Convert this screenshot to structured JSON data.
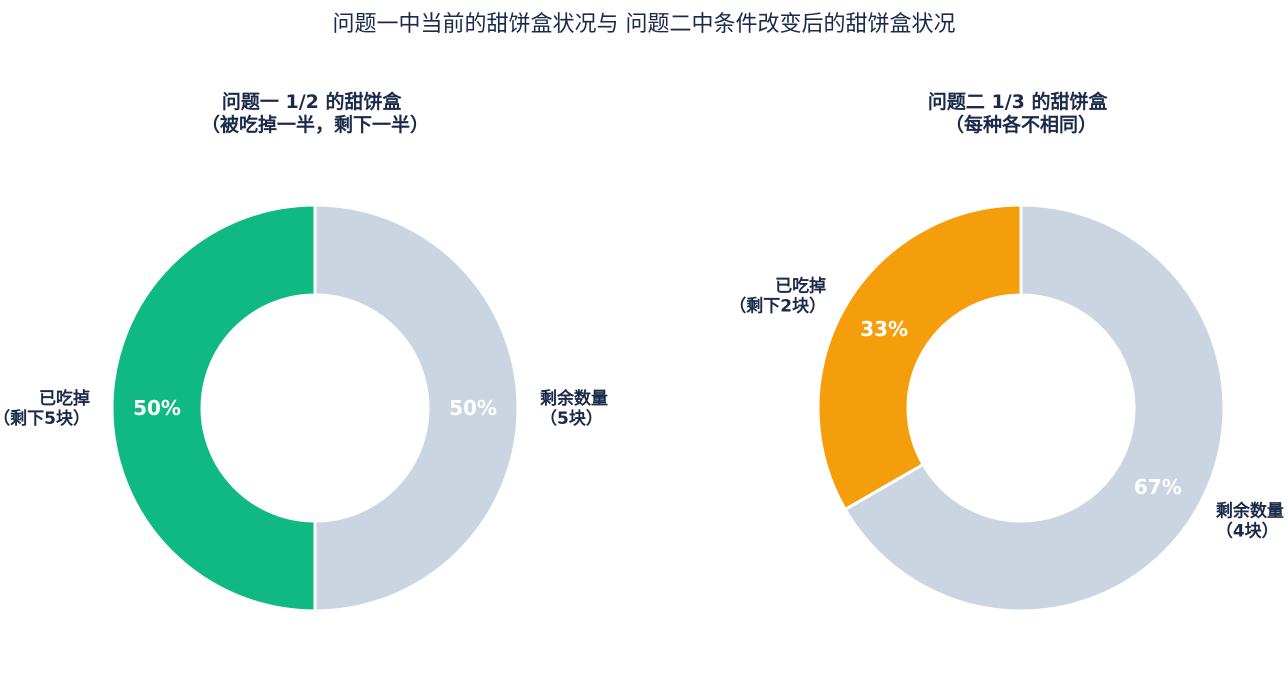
{
  "figure": {
    "title": "问题一中当前的甜饼盒状况与 问题二中条件改变后的甜饼盒状况"
  },
  "chart_data": [
    {
      "type": "pie",
      "title": "问题一 1/2 的甜饼盒\n（被吃掉一半，剩下一半）",
      "slices": [
        {
          "label": "已吃掉\n（剩下5块）",
          "value": 50,
          "color": "#10b981",
          "pct_label": "50%"
        },
        {
          "label": "剩余数量\n（5块）",
          "value": 50,
          "color": "#cbd5e1",
          "pct_label": "50%"
        }
      ]
    },
    {
      "type": "pie",
      "title": "问题二 1/3 的甜饼盒\n（每种各不相同）",
      "slices": [
        {
          "label": "已吃掉\n（剩下2块）",
          "value": 33.3333,
          "color": "#f59e0b",
          "pct_label": "33%"
        },
        {
          "label": "剩余数量\n（4块）",
          "value": 66.6667,
          "color": "#cbd5e1",
          "pct_label": "67%"
        }
      ]
    }
  ]
}
